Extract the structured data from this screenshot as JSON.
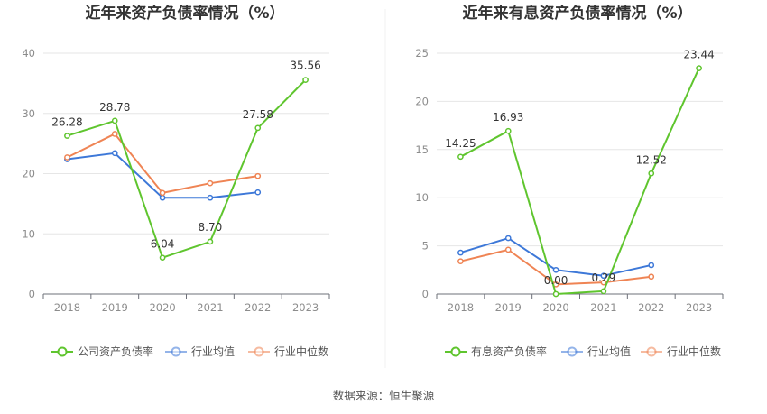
{
  "source_label": "数据来源：恒生聚源",
  "chart_data": [
    {
      "type": "line",
      "title": "近年来资产负债率情况（%）",
      "categories": [
        "2018",
        "2019",
        "2020",
        "2021",
        "2022",
        "2023"
      ],
      "ylim": [
        0,
        40
      ],
      "yticks": [
        0,
        10,
        20,
        30,
        40
      ],
      "legend_position": "bottom",
      "series": [
        {
          "name": "公司资产负债率",
          "color": "#5fc52e",
          "values": [
            26.28,
            28.78,
            6.04,
            8.7,
            27.58,
            35.56
          ],
          "labels": [
            "26.28",
            "28.78",
            "6.04",
            "8.70",
            "27.58",
            "35.56"
          ]
        },
        {
          "name": "行业均值",
          "color": "#3d78d8",
          "values": [
            22.4,
            23.4,
            16.0,
            16.0,
            16.9,
            null
          ]
        },
        {
          "name": "行业中位数",
          "color": "#ef8454",
          "values": [
            22.7,
            26.6,
            16.8,
            18.4,
            19.6,
            null
          ]
        }
      ]
    },
    {
      "type": "line",
      "title": "近年来有息资产负债率情况（%）",
      "categories": [
        "2018",
        "2019",
        "2020",
        "2021",
        "2022",
        "2023"
      ],
      "ylim": [
        0,
        25
      ],
      "yticks": [
        0,
        5,
        10,
        15,
        20,
        25
      ],
      "legend_position": "bottom",
      "series": [
        {
          "name": "有息资产负债率",
          "color": "#5fc52e",
          "values": [
            14.25,
            16.93,
            0.0,
            0.29,
            12.52,
            23.44
          ],
          "labels": [
            "14.25",
            "16.93",
            "0.00",
            "0.29",
            "12.52",
            "23.44"
          ]
        },
        {
          "name": "行业均值",
          "color": "#3d78d8",
          "values": [
            4.3,
            5.8,
            2.5,
            1.9,
            3.0,
            null
          ]
        },
        {
          "name": "行业中位数",
          "color": "#ef8454",
          "values": [
            3.4,
            4.6,
            1.0,
            1.2,
            1.8,
            null
          ]
        }
      ]
    }
  ]
}
